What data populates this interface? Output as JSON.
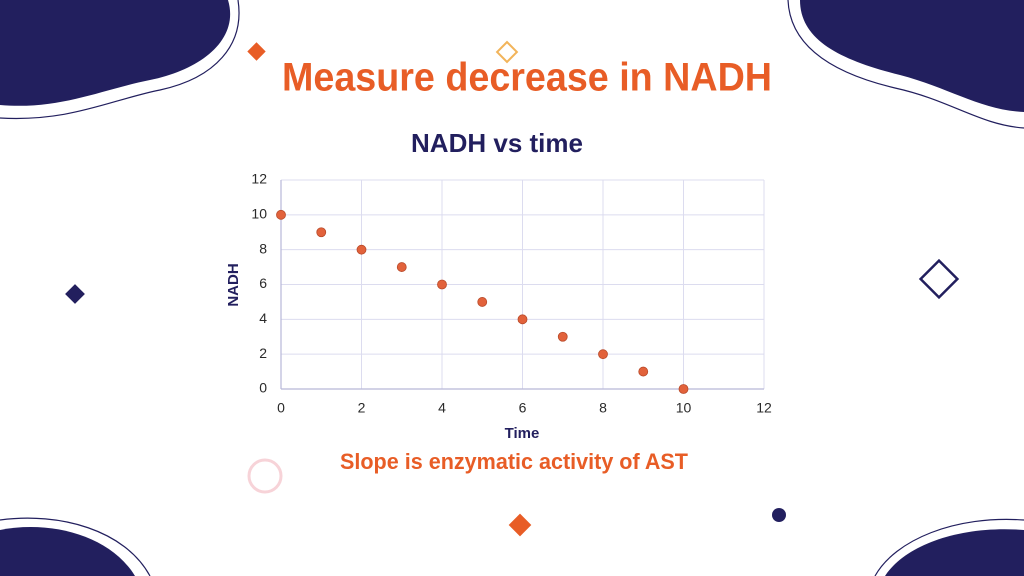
{
  "title": "Measure decrease in NADH",
  "caption": "Slope is enzymatic activity of AST",
  "chart_data": {
    "type": "scatter",
    "title": "NADH vs time",
    "x_label": "Time",
    "y_label": "NADH",
    "x": [
      0,
      1,
      2,
      3,
      4,
      5,
      6,
      7,
      8,
      9,
      10
    ],
    "values": [
      10,
      9,
      8,
      7,
      6,
      5,
      4,
      3,
      2,
      1,
      0
    ],
    "color": "#e2623b",
    "xlim": [
      0,
      12
    ],
    "xticks": [
      0,
      2,
      4,
      6,
      8,
      10,
      12
    ],
    "ylim": [
      0,
      12
    ],
    "yticks": [
      0,
      2,
      4,
      6,
      8,
      10,
      12
    ],
    "grid": true
  }
}
